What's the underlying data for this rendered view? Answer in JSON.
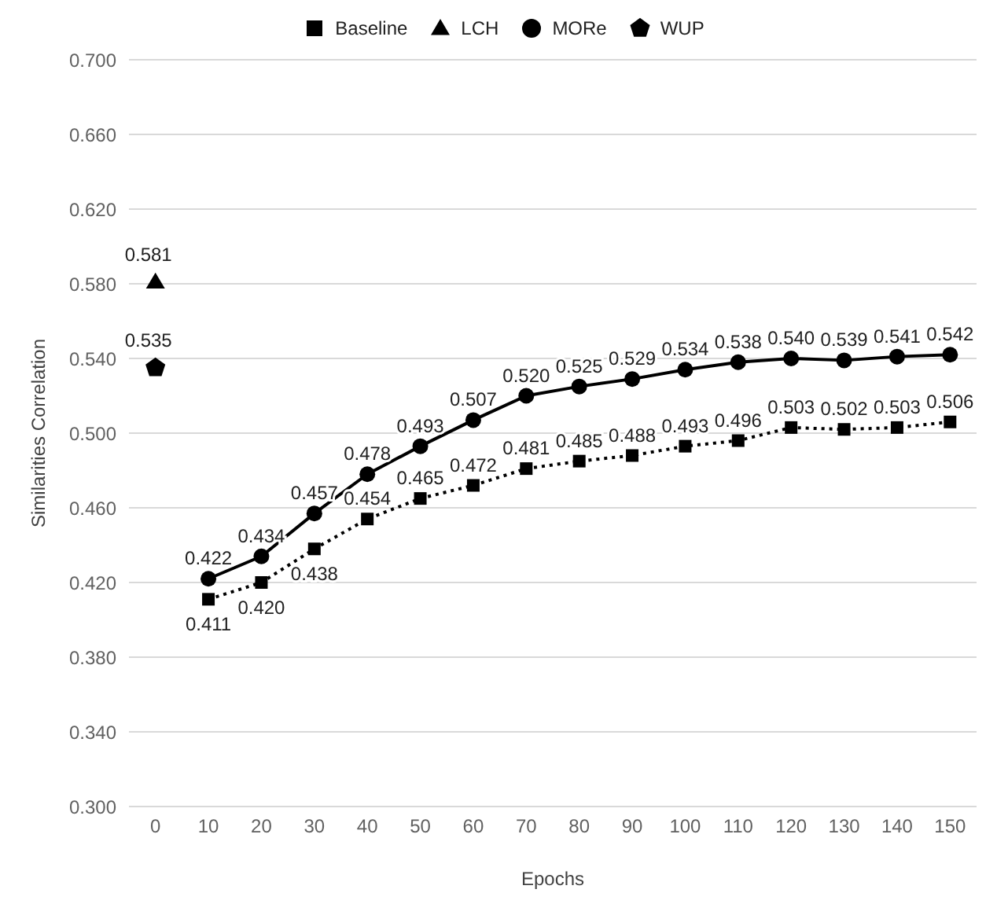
{
  "chart_data": {
    "type": "line",
    "xlabel": "Epochs",
    "ylabel": "Similarities Correlation",
    "xlim": [
      -5,
      155
    ],
    "xticks": [
      0,
      10,
      20,
      30,
      40,
      50,
      60,
      70,
      80,
      90,
      100,
      110,
      120,
      130,
      140,
      150
    ],
    "ylim": [
      0.3,
      0.7
    ],
    "yticks": [
      {
        "value": 0.3,
        "label": "0.300"
      },
      {
        "value": 0.34,
        "label": "0.340"
      },
      {
        "value": 0.38,
        "label": "0.380"
      },
      {
        "value": 0.42,
        "label": "0.420"
      },
      {
        "value": 0.46,
        "label": "0.460"
      },
      {
        "value": 0.5,
        "label": "0.500"
      },
      {
        "value": 0.54,
        "label": "0.540"
      },
      {
        "value": 0.58,
        "label": "0.580"
      },
      {
        "value": 0.62,
        "label": "0.620"
      },
      {
        "value": 0.66,
        "label": "0.660"
      },
      {
        "value": 0.7,
        "label": "0.700"
      }
    ],
    "grid": "y",
    "legend": "top",
    "series": [
      {
        "name": "Baseline",
        "color": "#000000",
        "marker": "square",
        "line_style": "dotted",
        "x": [
          10,
          20,
          30,
          40,
          50,
          60,
          70,
          80,
          90,
          100,
          110,
          120,
          130,
          140,
          150
        ],
        "values": [
          0.411,
          0.42,
          0.438,
          0.454,
          0.465,
          0.472,
          0.481,
          0.485,
          0.488,
          0.493,
          0.496,
          0.503,
          0.502,
          0.503,
          0.506
        ],
        "value_labels": [
          "0.411",
          "0.420",
          "0.438",
          "0.454",
          "0.465",
          "0.472",
          "0.481",
          "0.485",
          "0.488",
          "0.493",
          "0.496",
          "0.503",
          "0.502",
          "0.503",
          "0.506"
        ]
      },
      {
        "name": "LCH",
        "type": "scatter",
        "color": "#000000",
        "marker": "triangle",
        "x": [
          0
        ],
        "values": [
          0.581
        ],
        "value_labels": [
          "0.581"
        ]
      },
      {
        "name": "MORe",
        "color": "#000000",
        "marker": "circle",
        "line_style": "solid",
        "x": [
          10,
          20,
          30,
          40,
          50,
          60,
          70,
          80,
          90,
          100,
          110,
          120,
          130,
          140,
          150
        ],
        "values": [
          0.422,
          0.434,
          0.457,
          0.478,
          0.493,
          0.507,
          0.52,
          0.525,
          0.529,
          0.534,
          0.538,
          0.54,
          0.539,
          0.541,
          0.542
        ],
        "value_labels": [
          "0.422",
          "0.434",
          "0.457",
          "0.478",
          "0.493",
          "0.507",
          "0.520",
          "0.525",
          "0.529",
          "0.534",
          "0.538",
          "0.540",
          "0.539",
          "0.541",
          "0.542"
        ]
      },
      {
        "name": "WUP",
        "type": "scatter",
        "color": "#000000",
        "x": [
          0
        ],
        "values": [
          0.535
        ],
        "value_labels": [
          "0.535"
        ]
      }
    ]
  }
}
